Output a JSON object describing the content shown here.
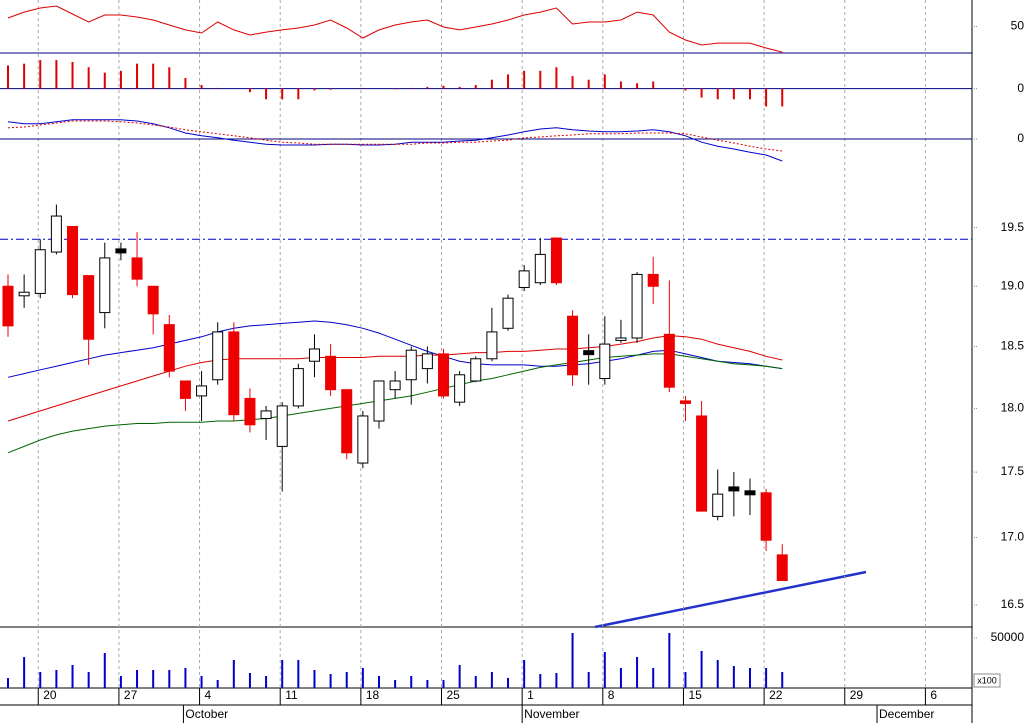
{
  "chart_data": [
    {
      "type": "line",
      "ylim": [
        30,
        70
      ],
      "yticks": [
        50
      ],
      "grid": false,
      "series": [
        {
          "color": "#dd0000",
          "values": [
            56.4,
            60.9,
            64.0,
            65.5,
            59.4,
            53.4,
            58.7,
            58.7,
            57.2,
            54.9,
            51.1,
            47.4,
            45.1,
            53.4,
            47.4,
            43.6,
            45.8,
            47.4,
            48.9,
            51.1,
            54.9,
            48.9,
            41.3,
            47.4,
            51.1,
            53.4,
            54.9,
            49.6,
            47.4,
            49.6,
            51.9,
            54.9,
            58.7,
            60.9,
            64.0,
            51.9,
            53.4,
            53.4,
            54.9,
            60.9,
            58.7,
            45.8,
            39.8,
            36.0,
            37.5,
            37.5,
            37.5,
            33.8,
            30.7
          ]
        }
      ]
    },
    {
      "type": "bar",
      "ylim": [
        -0.6,
        1.0
      ],
      "yticks": [
        0
      ],
      "grid": true,
      "color": "#dd0000",
      "values": [
        0.65,
        0.7,
        0.8,
        0.8,
        0.75,
        0.6,
        0.45,
        0.5,
        0.7,
        0.7,
        0.6,
        0.3,
        0.1,
        0.02,
        0,
        -0.1,
        -0.3,
        -0.3,
        -0.3,
        -0.05,
        -0.03,
        0,
        0.02,
        0,
        -0.02,
        0.02,
        0.05,
        0.08,
        0.05,
        0.1,
        0.25,
        0.4,
        0.5,
        0.5,
        0.6,
        0.35,
        0.25,
        0.4,
        0.2,
        0.15,
        0.2,
        0,
        -0.05,
        -0.25,
        -0.3,
        -0.3,
        -0.3,
        -0.5,
        -0.5
      ]
    },
    {
      "type": "line",
      "ylim": [
        -0.6,
        1.0
      ],
      "yticks": [
        0
      ],
      "grid": true,
      "series": [
        {
          "color": "#0000cc",
          "values": [
            0.43,
            0.38,
            0.38,
            0.43,
            0.48,
            0.48,
            0.48,
            0.48,
            0.45,
            0.38,
            0.28,
            0.15,
            0.08,
            0.03,
            -0.03,
            -0.08,
            -0.13,
            -0.15,
            -0.15,
            -0.15,
            -0.13,
            -0.13,
            -0.15,
            -0.15,
            -0.13,
            -0.08,
            -0.08,
            -0.08,
            -0.05,
            -0.03,
            0.03,
            0.1,
            0.18,
            0.25,
            0.28,
            0.23,
            0.2,
            0.18,
            0.18,
            0.2,
            0.23,
            0.18,
            0.08,
            -0.08,
            -0.18,
            -0.25,
            -0.33,
            -0.4,
            -0.55
          ]
        },
        {
          "color": "#dd0000",
          "dashed": true,
          "values": [
            0.28,
            0.3,
            0.35,
            0.4,
            0.45,
            0.45,
            0.45,
            0.43,
            0.4,
            0.35,
            0.3,
            0.23,
            0.18,
            0.13,
            0.08,
            0.03,
            -0.03,
            -0.08,
            -0.1,
            -0.13,
            -0.13,
            -0.13,
            -0.13,
            -0.13,
            -0.13,
            -0.13,
            -0.1,
            -0.1,
            -0.08,
            -0.08,
            -0.05,
            -0.03,
            0.03,
            0.05,
            0.08,
            0.1,
            0.13,
            0.13,
            0.13,
            0.15,
            0.15,
            0.15,
            0.13,
            0.05,
            -0.03,
            -0.1,
            -0.18,
            -0.25,
            -0.3
          ]
        }
      ]
    },
    {
      "type": "candlestick",
      "log_scale": true,
      "ylim": [
        16.34,
        20.28
      ],
      "grid": false,
      "yticks": [
        16.5,
        {
          "value": 17,
          "label": "17.0"
        },
        17.5,
        {
          "value": 18,
          "label": "18.0"
        },
        18.5,
        {
          "value": 19,
          "label": "19.0"
        },
        19.5
      ],
      "up_color": "#ffffff",
      "down_color": "#ee0000",
      "reference_line": 19.4,
      "reference_color": "#0000cc",
      "open": [
        19.0,
        18.92,
        18.94,
        19.29,
        19.51,
        19.09,
        18.78,
        19.3,
        19.24,
        19.0,
        18.68,
        18.22,
        18.1,
        18.23,
        18.62,
        18.08,
        17.92,
        17.7,
        18.02,
        18.38,
        18.42,
        18.15,
        17.57,
        17.9,
        18.15,
        18.23,
        18.32,
        18.44,
        18.05,
        18.22,
        18.4,
        18.65,
        18.99,
        19.03,
        19.41,
        18.75,
        18.45,
        18.24,
        18.55,
        18.57,
        19.1,
        18.6,
        18.06,
        17.94,
        17.16,
        17.37,
        17.34,
        17.34,
        16.87
      ],
      "high": [
        19.1,
        19.1,
        19.4,
        19.7,
        19.51,
        19.09,
        19.37,
        19.37,
        19.46,
        19.0,
        18.76,
        18.22,
        18.3,
        18.7,
        18.7,
        18.16,
        18.02,
        18.05,
        18.36,
        18.6,
        18.52,
        18.15,
        17.98,
        18.22,
        18.3,
        18.5,
        18.5,
        18.48,
        18.3,
        18.42,
        18.82,
        18.93,
        19.18,
        19.41,
        19.41,
        18.8,
        18.6,
        18.75,
        18.72,
        19.12,
        19.25,
        19.05,
        18.1,
        18.06,
        17.52,
        17.5,
        17.45,
        17.37,
        16.95
      ],
      "low": [
        18.58,
        18.82,
        18.9,
        19.27,
        18.9,
        18.35,
        18.65,
        19.22,
        19.0,
        18.6,
        18.25,
        17.98,
        17.9,
        18.19,
        17.9,
        17.81,
        17.75,
        17.35,
        18.0,
        18.25,
        18.1,
        17.6,
        17.53,
        17.84,
        18.08,
        18.03,
        18.2,
        18.08,
        18.02,
        18.21,
        18.38,
        18.63,
        18.96,
        19.01,
        19.01,
        18.18,
        18.19,
        18.19,
        18.53,
        18.53,
        18.85,
        18.13,
        17.9,
        17.2,
        17.13,
        17.16,
        17.17,
        16.9,
        16.68
      ],
      "close": [
        18.67,
        18.95,
        19.31,
        19.6,
        18.93,
        18.56,
        19.24,
        19.3,
        19.06,
        18.77,
        18.3,
        18.08,
        18.18,
        18.62,
        17.95,
        17.87,
        17.98,
        18.02,
        18.32,
        18.48,
        18.15,
        17.65,
        17.94,
        18.22,
        18.22,
        18.47,
        18.44,
        18.1,
        18.27,
        18.4,
        18.62,
        18.9,
        19.13,
        19.27,
        19.03,
        18.27,
        18.45,
        18.52,
        18.57,
        19.1,
        19.0,
        18.17,
        18.04,
        17.2,
        17.33,
        17.37,
        17.34,
        16.98,
        16.68
      ],
      "series": [
        {
          "color": "#0000cc",
          "values": [
            18.25,
            18.28,
            18.31,
            18.34,
            18.37,
            18.4,
            18.43,
            18.45,
            18.47,
            18.49,
            18.52,
            18.55,
            18.58,
            18.62,
            18.65,
            18.67,
            18.68,
            18.69,
            18.7,
            18.71,
            18.7,
            18.68,
            18.65,
            18.61,
            18.56,
            18.51,
            18.46,
            18.42,
            18.38,
            18.36,
            18.35,
            18.35,
            18.35,
            18.34,
            18.34,
            18.35,
            18.36,
            18.38,
            18.4,
            18.43,
            18.46,
            18.47,
            18.44,
            18.41,
            18.38,
            18.37,
            18.36,
            18.34,
            18.32
          ]
        },
        {
          "color": "#dd0000",
          "values": [
            17.9,
            17.94,
            17.98,
            18.02,
            18.06,
            18.1,
            18.14,
            18.18,
            18.22,
            18.26,
            18.3,
            18.34,
            18.37,
            18.39,
            18.4,
            18.4,
            18.4,
            18.4,
            18.4,
            18.41,
            18.41,
            18.41,
            18.41,
            18.42,
            18.42,
            18.42,
            18.43,
            18.43,
            18.44,
            18.45,
            18.45,
            18.46,
            18.46,
            18.47,
            18.48,
            18.48,
            18.49,
            18.5,
            18.52,
            18.54,
            18.57,
            18.59,
            18.58,
            18.56,
            18.52,
            18.49,
            18.46,
            18.42,
            18.39
          ]
        },
        {
          "color": "#006600",
          "values": [
            17.65,
            17.7,
            17.75,
            17.79,
            17.82,
            17.84,
            17.86,
            17.87,
            17.88,
            17.88,
            17.89,
            17.89,
            17.89,
            17.9,
            17.9,
            17.91,
            17.92,
            17.94,
            17.96,
            17.98,
            18.0,
            18.02,
            18.04,
            18.06,
            18.08,
            18.1,
            18.13,
            18.16,
            18.19,
            18.22,
            18.24,
            18.27,
            18.3,
            18.33,
            18.35,
            18.37,
            18.39,
            18.41,
            18.42,
            18.43,
            18.44,
            18.44,
            18.42,
            18.4,
            18.38,
            18.36,
            18.35,
            18.34,
            18.32
          ]
        }
      ]
    },
    {
      "type": "bar",
      "ylim": [
        0,
        61000
      ],
      "yticks": [
        50000
      ],
      "grid": false,
      "color": "#0000cc",
      "unit_label": "x100",
      "categories": [
        null,
        null,
        "20",
        null,
        null,
        null,
        null,
        "27",
        null,
        null,
        null,
        null,
        "4",
        null,
        null,
        null,
        null,
        "11",
        null,
        null,
        null,
        null,
        "18",
        null,
        null,
        null,
        null,
        "25",
        null,
        null,
        null,
        null,
        "1",
        null,
        null,
        null,
        null,
        "8",
        null,
        null,
        null,
        null,
        "15",
        null,
        null,
        null,
        null,
        "22",
        null,
        null,
        null,
        null,
        "29",
        null,
        null,
        null,
        null,
        "6",
        null,
        null
      ],
      "months": [
        null,
        null,
        null,
        null,
        null,
        null,
        null,
        null,
        null,
        null,
        null,
        "October",
        null,
        null,
        null,
        null,
        null,
        null,
        null,
        null,
        null,
        null,
        null,
        null,
        null,
        null,
        null,
        null,
        null,
        null,
        null,
        null,
        "November",
        null,
        null,
        null,
        null,
        null,
        null,
        null,
        null,
        null,
        null,
        null,
        null,
        null,
        null,
        null,
        null,
        null,
        null,
        null,
        null,
        null,
        "December",
        null,
        null,
        null,
        null,
        null
      ],
      "values": [
        10000,
        31000,
        16000,
        18000,
        23000,
        16000,
        35000,
        12000,
        18000,
        18000,
        18000,
        20000,
        12000,
        8000,
        28000,
        15000,
        12000,
        28000,
        28000,
        18000,
        14000,
        16000,
        20000,
        12000,
        8000,
        12000,
        8000,
        8000,
        23000,
        12000,
        16000,
        10000,
        28000,
        14000,
        15000,
        55000,
        16000,
        36000,
        20000,
        31000,
        20000,
        55000,
        16000,
        37000,
        28000,
        22000,
        20000,
        20000,
        16000,
        null,
        null,
        null,
        null,
        null,
        null,
        null,
        null,
        null,
        null,
        null
      ]
    }
  ]
}
